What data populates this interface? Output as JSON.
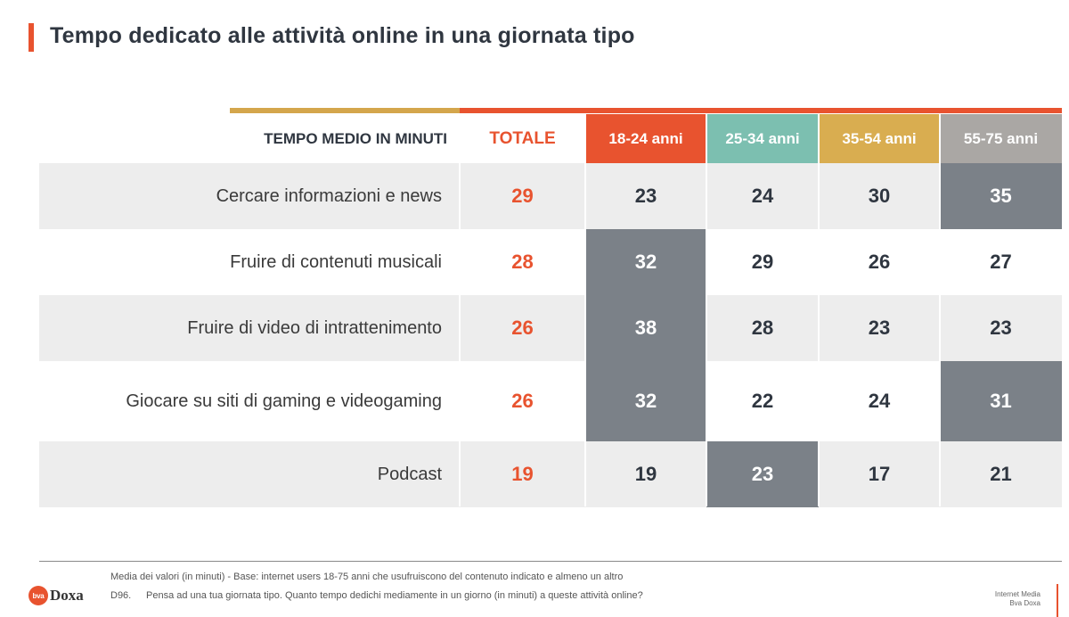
{
  "title": "Tempo dedicato alle attività online in una giornata tipo",
  "colors": {
    "accent": "#e8532f",
    "gold": "#d4a64c",
    "highlight": "#7b8188",
    "groups": [
      "#e8532f",
      "#7cbfb0",
      "#d9ad50",
      "#aaa7a4"
    ]
  },
  "chart_data": {
    "type": "table",
    "header_label": "TEMPO MEDIO IN MINUTI",
    "columns": [
      "TOTALE",
      "18-24 anni",
      "25-34 anni",
      "35-54 anni",
      "55-75 anni"
    ],
    "rows": [
      {
        "label": "Cercare informazioni e news",
        "values": [
          29,
          23,
          24,
          30,
          35
        ],
        "highlight": [
          false,
          false,
          false,
          false,
          true
        ]
      },
      {
        "label": "Fruire di contenuti musicali",
        "values": [
          28,
          32,
          29,
          26,
          27
        ],
        "highlight": [
          false,
          true,
          false,
          false,
          false
        ]
      },
      {
        "label": "Fruire di video di intrattenimento",
        "values": [
          26,
          38,
          28,
          23,
          23
        ],
        "highlight": [
          false,
          true,
          false,
          false,
          false
        ]
      },
      {
        "label": "Giocare su siti di gaming e videogaming",
        "values": [
          26,
          32,
          22,
          24,
          31
        ],
        "highlight": [
          false,
          true,
          false,
          false,
          true
        ]
      },
      {
        "label": "Podcast",
        "values": [
          19,
          19,
          23,
          17,
          21
        ],
        "highlight": [
          false,
          false,
          true,
          false,
          false
        ]
      }
    ]
  },
  "footer": {
    "base_note": "Media dei valori (in minuti) - Base: internet users 18-75 anni che usufruiscono del contenuto indicato e almeno un altro",
    "question_code": "D96.",
    "question_text": "Pensa ad una tua giornata tipo. Quanto tempo dedichi mediamente in un giorno (in minuti) a queste attività online?",
    "logo_mark": "bva",
    "logo_text": "Doxa",
    "report_line1": "Internet Media",
    "report_line2": "Bva Doxa"
  }
}
